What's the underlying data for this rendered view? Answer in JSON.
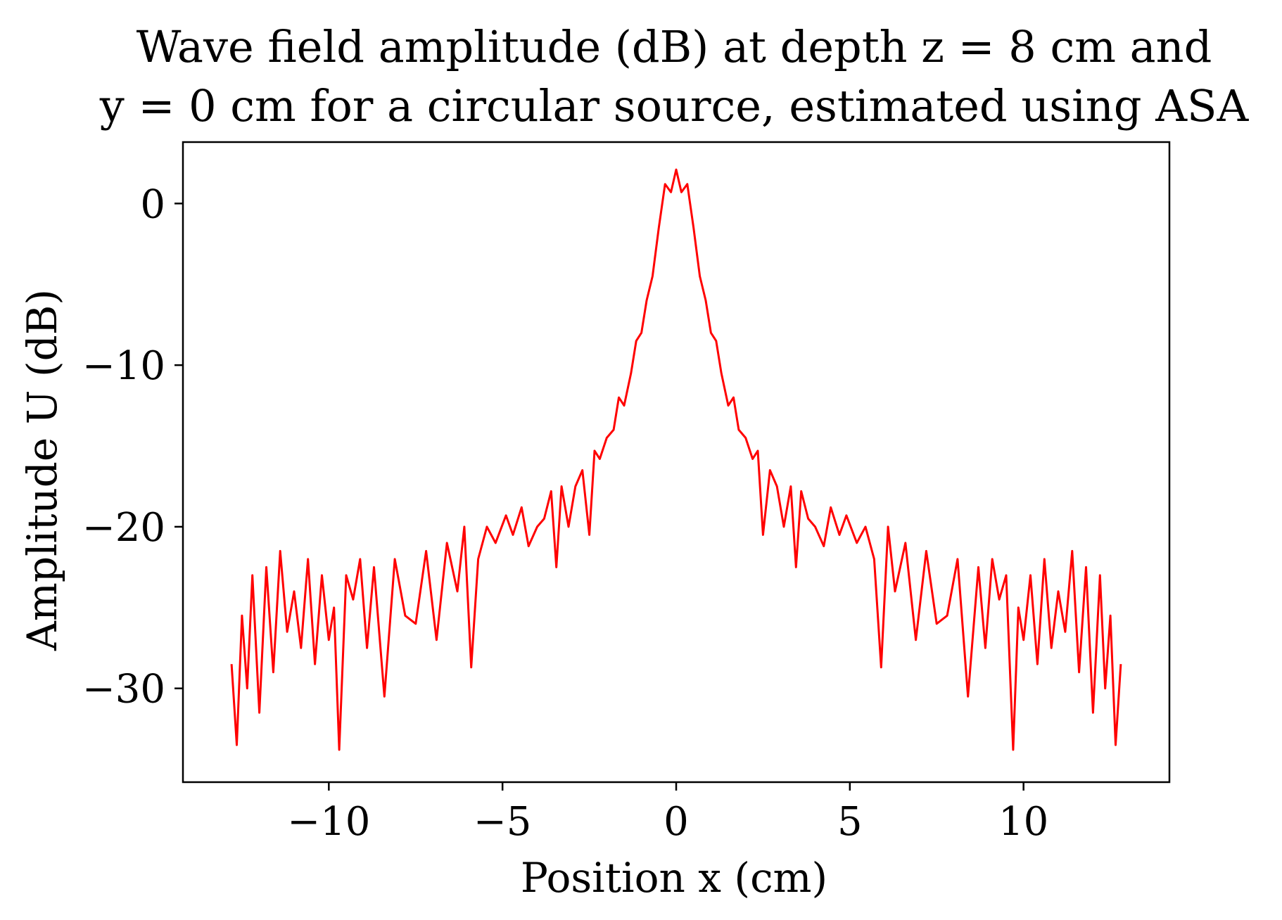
{
  "chart_data": {
    "type": "line",
    "title_line1": "Wave field amplitude (dB) at depth z = 8 cm and",
    "title_line2": "y = 0 cm for a circular source, estimated using ASA",
    "xlabel": "Position x (cm)",
    "ylabel": "Amplitude U (dB)",
    "xlim": [
      -14.2,
      14.2
    ],
    "ylim": [
      -35.8,
      3.8
    ],
    "grid": false,
    "x_ticks": [
      {
        "value": -10,
        "label": "−10"
      },
      {
        "value": -5,
        "label": "−5"
      },
      {
        "value": 0,
        "label": "0"
      },
      {
        "value": 5,
        "label": "5"
      },
      {
        "value": 10,
        "label": "10"
      }
    ],
    "y_ticks": [
      {
        "value": 0,
        "label": "0"
      },
      {
        "value": -10,
        "label": "−10"
      },
      {
        "value": -20,
        "label": "−20"
      },
      {
        "value": -30,
        "label": "−30"
      }
    ],
    "series": [
      {
        "color": "#ff0000",
        "symmetric": true,
        "x_half": [
          0,
          0.15,
          0.32,
          0.5,
          0.68,
          0.85,
          1.0,
          1.15,
          1.3,
          1.5,
          1.65,
          1.8,
          2.0,
          2.2,
          2.35,
          2.5,
          2.7,
          2.9,
          3.1,
          3.3,
          3.45,
          3.6,
          3.8,
          4.0,
          4.25,
          4.45,
          4.7,
          4.9,
          5.2,
          5.45,
          5.7,
          5.9,
          6.1,
          6.3,
          6.6,
          6.9,
          7.2,
          7.5,
          7.8,
          8.1,
          8.4,
          8.7,
          8.9,
          9.1,
          9.3,
          9.5,
          9.7,
          9.85,
          10.0,
          10.2,
          10.4,
          10.6,
          10.8,
          11.0,
          11.2,
          11.4,
          11.6,
          11.8,
          12.0,
          12.2,
          12.35,
          12.5,
          12.65,
          12.8
        ],
        "y_half": [
          2.1,
          0.7,
          1.2,
          -1.5,
          -4.5,
          -6.0,
          -8.0,
          -8.5,
          -10.5,
          -12.5,
          -12.0,
          -14.0,
          -14.5,
          -15.8,
          -15.3,
          -20.5,
          -16.5,
          -17.5,
          -20.0,
          -17.5,
          -22.5,
          -17.8,
          -19.5,
          -20.0,
          -21.2,
          -18.8,
          -20.5,
          -19.3,
          -21.0,
          -20.0,
          -22.0,
          -28.7,
          -20.0,
          -24.0,
          -21.0,
          -27.0,
          -21.5,
          -26.0,
          -25.5,
          -22.0,
          -30.5,
          -22.5,
          -27.5,
          -22.0,
          -24.5,
          -23.0,
          -33.8,
          -25.0,
          -27.0,
          -23.0,
          -28.5,
          -22.0,
          -27.5,
          -24.0,
          -26.5,
          -21.5,
          -29.0,
          -22.5,
          -31.5,
          -23.0,
          -30.0,
          -25.5,
          -33.5,
          -28.5
        ]
      }
    ]
  }
}
